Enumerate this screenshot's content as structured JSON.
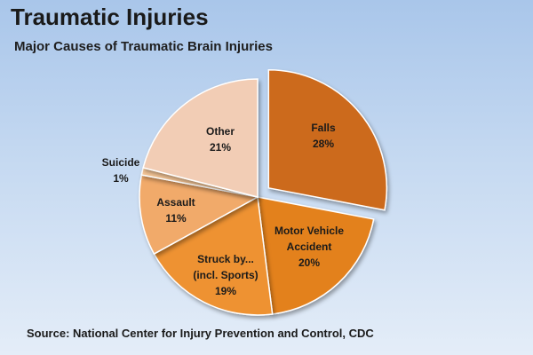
{
  "title": "Traumatic Injuries",
  "subtitle": "Major Causes of Traumatic Brain Injuries",
  "source": "Source:  National Center for Injury Prevention and Control, CDC",
  "chart_data": {
    "type": "pie",
    "exploded": "Falls",
    "slices": [
      {
        "name": "Falls",
        "value": 28,
        "value_label": "28%",
        "label_lines": [
          "Falls"
        ],
        "color": "#cc6a1f"
      },
      {
        "name": "Motor Vehicle Accident",
        "value": 20,
        "value_label": "20%",
        "label_lines": [
          "Motor Vehicle",
          "Accident"
        ],
        "color": "#e3811f"
      },
      {
        "name": "Struck by... (incl. Sports)",
        "value": 19,
        "value_label": "19%",
        "label_lines": [
          "Struck by...",
          "(incl. Sports)"
        ],
        "color": "#ee9233"
      },
      {
        "name": "Assault",
        "value": 11,
        "value_label": "11%",
        "label_lines": [
          "Assault"
        ],
        "color": "#f1aa6b"
      },
      {
        "name": "Suicide",
        "value": 1,
        "value_label": "1%",
        "label_lines": [
          "Suicide"
        ],
        "color": "#f4c596"
      },
      {
        "name": "Other",
        "value": 21,
        "value_label": "21%",
        "label_lines": [
          "Other"
        ],
        "color": "#f2cdb5"
      }
    ]
  }
}
